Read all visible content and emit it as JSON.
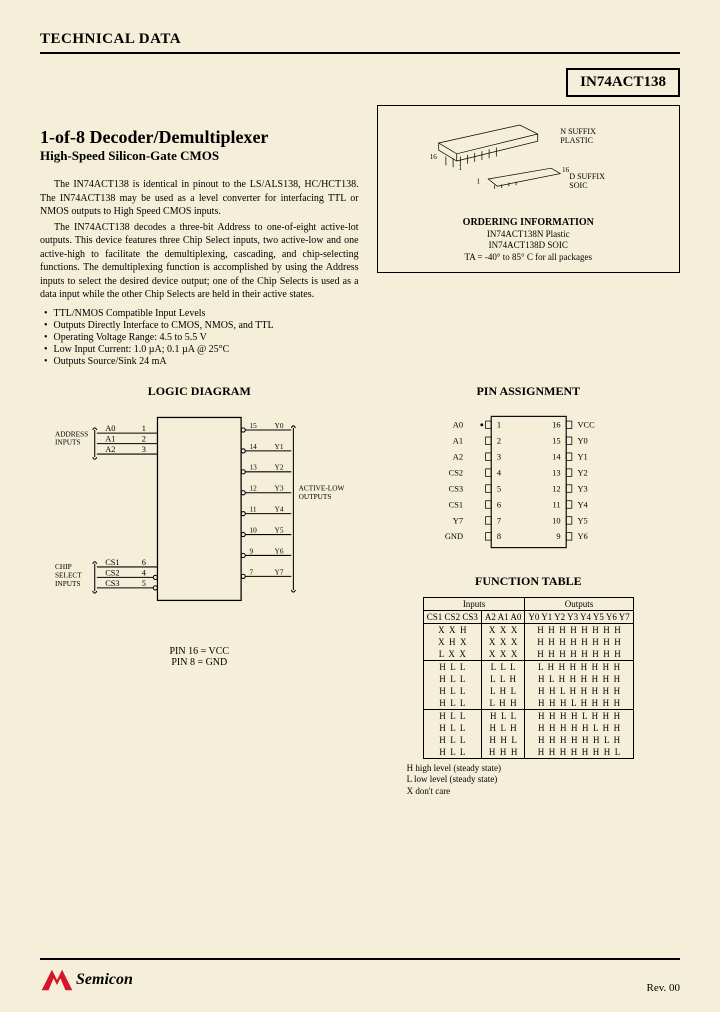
{
  "header": {
    "label": "TECHNICAL DATA"
  },
  "part_number": "IN74ACT138",
  "title": "1-of-8 Decoder/Demultiplexer",
  "subtitle": "High-Speed Silicon-Gate CMOS",
  "paragraphs": [
    "The IN74ACT138 is identical in pinout to the LS/ALS138, HC/HCT138. The IN74ACT138 may be used as a level converter for interfacing TTL or NMOS outputs to High Speed CMOS inputs.",
    "The IN74ACT138 decodes a three-bit Address to one-of-eight active-lot outputs. This device features three Chip Select inputs, two active-low and one active-high to facilitate the demultiplexing, cascading, and chip-selecting functions. The demultiplexing function is accomplished by using the Address inputs to select the desired device output; one of the Chip Selects is used as a data input while the other Chip Selects are held in their active states."
  ],
  "bullets": [
    "TTL/NMOS Compatible Input Levels",
    "Outputs Directly Interface to CMOS, NMOS, and TTL",
    "Operating Voltage Range: 4.5 to 5.5 V",
    "Low Input Current: 1.0 µA; 0.1 µA @ 25°C",
    "Outputs Source/Sink 24 mA"
  ],
  "package": {
    "n_suffix": "N SUFFIX",
    "n_type": "PLASTIC",
    "d_suffix": "D SUFFIX",
    "d_type": "SOIC",
    "pin16": "16",
    "pin1": "1"
  },
  "ordering": {
    "heading": "ORDERING INFORMATION",
    "lines": [
      "IN74ACT138N Plastic",
      "IN74ACT138D SOIC"
    ],
    "temp": "TA = -40° to 85° C for all packages"
  },
  "sections": {
    "pin_assignment": "PIN ASSIGNMENT",
    "logic_diagram": "LOGIC DIAGRAM",
    "function_table": "FUNCTION TABLE"
  },
  "pins": {
    "left": [
      "A0",
      "A1",
      "A2",
      "CS2",
      "CS3",
      "CS1",
      "Y7",
      "GND"
    ],
    "left_nums": [
      "1",
      "2",
      "3",
      "4",
      "5",
      "6",
      "7",
      "8"
    ],
    "right": [
      "VCC",
      "Y0",
      "Y1",
      "Y2",
      "Y3",
      "Y4",
      "Y5",
      "Y6"
    ],
    "right_nums": [
      "16",
      "15",
      "14",
      "13",
      "12",
      "11",
      "10",
      "9"
    ]
  },
  "logic": {
    "addr_label": "ADDRESS\nINPUTS",
    "cs_label": "CHIP\nSELECT\nINPUTS",
    "out_label": "ACTIVE-LOW\nOUTPUTS",
    "addr_pins": [
      "A0",
      "A1",
      "A2"
    ],
    "addr_nums": [
      "1",
      "2",
      "3"
    ],
    "cs_pins": [
      "CS1",
      "CS2",
      "CS3"
    ],
    "cs_nums": [
      "6",
      "4",
      "5"
    ],
    "out_pins": [
      "Y0",
      "Y1",
      "Y2",
      "Y3",
      "Y4",
      "Y5",
      "Y6",
      "Y7"
    ],
    "out_nums": [
      "15",
      "14",
      "13",
      "12",
      "11",
      "10",
      "9",
      "7"
    ],
    "pin_note1": "PIN 16 = VCC",
    "pin_note2": "PIN 8 = GND"
  },
  "function_table": {
    "inputs_header": "Inputs",
    "outputs_header": "Outputs",
    "cs_cols": [
      "CS1",
      "CS2",
      "CS3"
    ],
    "addr_cols": [
      "A2",
      "A1",
      "A0"
    ],
    "out_cols": [
      "Y0",
      "Y1",
      "Y2",
      "Y3",
      "Y4",
      "Y5",
      "Y6",
      "Y7"
    ],
    "rows": [
      [
        "X",
        "X",
        "H",
        "X",
        "X",
        "X",
        "H",
        "H",
        "H",
        "H",
        "H",
        "H",
        "H",
        "H"
      ],
      [
        "X",
        "H",
        "X",
        "X",
        "X",
        "X",
        "H",
        "H",
        "H",
        "H",
        "H",
        "H",
        "H",
        "H"
      ],
      [
        "L",
        "X",
        "X",
        "X",
        "X",
        "X",
        "H",
        "H",
        "H",
        "H",
        "H",
        "H",
        "H",
        "H"
      ],
      [
        "H",
        "L",
        "L",
        "L",
        "L",
        "L",
        "L",
        "H",
        "H",
        "H",
        "H",
        "H",
        "H",
        "H"
      ],
      [
        "H",
        "L",
        "L",
        "L",
        "L",
        "H",
        "H",
        "L",
        "H",
        "H",
        "H",
        "H",
        "H",
        "H"
      ],
      [
        "H",
        "L",
        "L",
        "L",
        "H",
        "L",
        "H",
        "H",
        "L",
        "H",
        "H",
        "H",
        "H",
        "H"
      ],
      [
        "H",
        "L",
        "L",
        "L",
        "H",
        "H",
        "H",
        "H",
        "H",
        "L",
        "H",
        "H",
        "H",
        "H"
      ],
      [
        "H",
        "L",
        "L",
        "H",
        "L",
        "L",
        "H",
        "H",
        "H",
        "H",
        "L",
        "H",
        "H",
        "H"
      ],
      [
        "H",
        "L",
        "L",
        "H",
        "L",
        "H",
        "H",
        "H",
        "H",
        "H",
        "H",
        "L",
        "H",
        "H"
      ],
      [
        "H",
        "L",
        "L",
        "H",
        "H",
        "L",
        "H",
        "H",
        "H",
        "H",
        "H",
        "H",
        "L",
        "H"
      ],
      [
        "H",
        "L",
        "L",
        "H",
        "H",
        "H",
        "H",
        "H",
        "H",
        "H",
        "H",
        "H",
        "H",
        "L"
      ]
    ],
    "row_groups": [
      3,
      4,
      4
    ]
  },
  "legend": {
    "h": "H    high level (steady state)",
    "l": "L    low level (steady state)",
    "x": "X    don't care"
  },
  "footer": {
    "company": "Semicon",
    "rev": "Rev. 00"
  },
  "colors": {
    "logo_red": "#d4152a",
    "stroke": "#000000"
  }
}
